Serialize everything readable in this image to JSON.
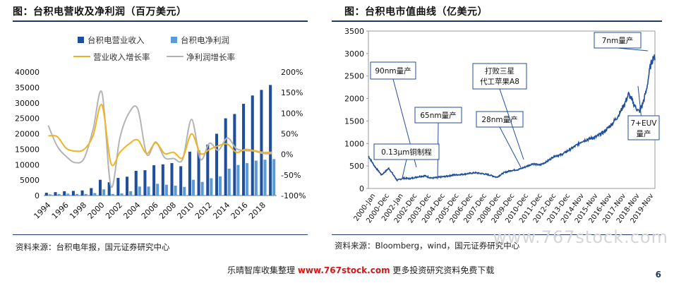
{
  "chart_data": [
    {
      "type": "bar",
      "title": "图：台积电营收及净利润（百万美元）",
      "categories": [
        "1994",
        "1995",
        "1996",
        "1997",
        "1998",
        "1999",
        "2000",
        "2001",
        "2002",
        "2003",
        "2004",
        "2005",
        "2006",
        "2007",
        "2008",
        "2009",
        "2010",
        "2011",
        "2012",
        "2013",
        "2014",
        "2015",
        "2016",
        "2017",
        "2018",
        "2019"
      ],
      "x_tick_labels": [
        "1994",
        "1996",
        "1998",
        "2000",
        "2002",
        "2004",
        "2006",
        "2008",
        "2010",
        "2012",
        "2014",
        "2016",
        "2018"
      ],
      "ylim": [
        0,
        40000
      ],
      "y_ticks": [
        "40000",
        "35000",
        "30000",
        "25000",
        "20000",
        "15000",
        "10000",
        "5000",
        "0"
      ],
      "y2lim": [
        -100,
        200
      ],
      "y2_ticks": [
        "200%",
        "150%",
        "100%",
        "50%",
        "0%",
        "-50%",
        "-100%"
      ],
      "legend_position": "top",
      "series": [
        {
          "name": "台积电营业收入",
          "color": "#1f4e9c",
          "axis": "left",
          "values": [
            900,
            1100,
            1400,
            1500,
            1650,
            2400,
            5100,
            4300,
            5700,
            6100,
            8000,
            8200,
            9800,
            10100,
            10500,
            9500,
            14200,
            14600,
            16500,
            20000,
            25000,
            26400,
            29700,
            32400,
            34200,
            35800
          ]
        },
        {
          "name": "台积电净利润",
          "color": "#5b9bd5",
          "axis": "left",
          "values": [
            400,
            500,
            600,
            500,
            500,
            800,
            2000,
            500,
            700,
            1400,
            2900,
            2900,
            3800,
            3500,
            3200,
            2800,
            5100,
            4400,
            5600,
            6200,
            8700,
            9900,
            10500,
            11300,
            11600,
            11800
          ]
        },
        {
          "name": "营业收入增长率",
          "color": "#f0b323",
          "axis": "right",
          "values": [
            45,
            43,
            15,
            8,
            12,
            45,
            120,
            -22,
            5,
            25,
            35,
            2,
            28,
            2,
            5,
            -8,
            50,
            2,
            12,
            21,
            25,
            5,
            12,
            9,
            5,
            5
          ]
        },
        {
          "name": "净利润增长率",
          "color": "#b4b4b4",
          "axis": "right",
          "values": [
            70,
            20,
            -5,
            -20,
            -10,
            60,
            150,
            -78,
            40,
            100,
            110,
            0,
            30,
            -8,
            -10,
            -12,
            85,
            -12,
            27,
            10,
            40,
            14,
            9,
            8,
            2,
            2
          ]
        }
      ]
    },
    {
      "type": "line",
      "title": "图：台积电市值曲线（亿美元）",
      "ylim": [
        0,
        3500
      ],
      "y_ticks": [
        "3500",
        "3000",
        "2500",
        "2000",
        "1500",
        "1000",
        "500",
        "0"
      ],
      "x_tick_labels": [
        "2000-Jan",
        "2000-Dec",
        "2002-Jan",
        "2002-Dec",
        "2003-Dec",
        "2004-Dec",
        "2005-Dec",
        "2006-Dec",
        "2007-Dec",
        "2008-Dec",
        "2009-Dec",
        "2010-Dec",
        "2011-Dec",
        "2012-Dec",
        "2013-Dec",
        "2014-Nov",
        "2015-Nov",
        "2016-Nov",
        "2017-Nov",
        "2018-Nov",
        "2019-Nov"
      ],
      "series": [
        {
          "color": "#1f4e9c",
          "x": [
            "2000-01",
            "2000-06",
            "2000-12",
            "2001-06",
            "2002-01",
            "2002-06",
            "2002-12",
            "2003-06",
            "2003-12",
            "2004-06",
            "2004-12",
            "2005-06",
            "2005-12",
            "2006-06",
            "2006-12",
            "2007-06",
            "2007-12",
            "2008-06",
            "2008-12",
            "2009-06",
            "2009-12",
            "2010-06",
            "2010-12",
            "2011-06",
            "2011-12",
            "2012-06",
            "2012-12",
            "2013-06",
            "2013-12",
            "2014-06",
            "2014-11",
            "2015-05",
            "2015-11",
            "2016-05",
            "2016-11",
            "2017-05",
            "2017-11",
            "2018-02",
            "2018-05",
            "2018-08",
            "2018-11",
            "2019-02",
            "2019-05",
            "2019-08",
            "2019-11",
            "2019-12"
          ],
          "values": [
            720,
            500,
            300,
            450,
            180,
            230,
            220,
            260,
            280,
            230,
            250,
            270,
            300,
            310,
            330,
            350,
            330,
            300,
            250,
            350,
            400,
            420,
            480,
            550,
            520,
            600,
            720,
            750,
            850,
            950,
            1050,
            1100,
            1150,
            1250,
            1400,
            1600,
            1900,
            2100,
            1950,
            1800,
            1700,
            1900,
            2200,
            2700,
            2950,
            2850
          ]
        }
      ],
      "annotations": [
        {
          "label": "90nm量产"
        },
        {
          "label": "65nm量产"
        },
        {
          "label": "0.13μm铜制程"
        },
        {
          "label": "28nm量产"
        },
        {
          "label": "打败三星",
          "label2": "代工苹果A8"
        },
        {
          "label": "7nm量产"
        },
        {
          "label": "7+EUV",
          "label2": "量产"
        }
      ]
    }
  ],
  "sources": {
    "left": "资料来源：台积电年报，国元证券研究中心",
    "right": "资料来源：Bloomberg，wind，国元证券研究中心"
  },
  "watermark": "www.767stock.com",
  "footer": {
    "prefix": "乐晴智库收集整理",
    "brand": "www.767stock.com",
    "suffix": "更多投资研究资料免费下载"
  },
  "page_number": "6"
}
